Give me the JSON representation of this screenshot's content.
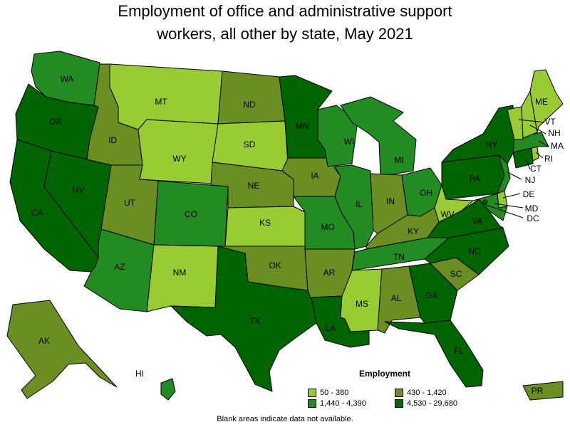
{
  "title_line1": "Employment of office and administrative support",
  "title_line2": "workers, all other by state, May 2021",
  "legend": {
    "title": "Employment",
    "items": [
      {
        "label": "50 - 380",
        "color": "#99cc33"
      },
      {
        "label": "430 - 1,420",
        "color": "#6b8e23"
      },
      {
        "label": "1,440 - 4,390",
        "color": "#228b22"
      },
      {
        "label": "4,530 - 29,680",
        "color": "#006400"
      }
    ]
  },
  "note": "Blank areas indicate data not available.",
  "states": {
    "WA": {
      "label": "WA",
      "tier": 2
    },
    "OR": {
      "label": "OR",
      "tier": 3
    },
    "CA": {
      "label": "CA",
      "tier": 3
    },
    "NV": {
      "label": "NV",
      "tier": 3
    },
    "ID": {
      "label": "ID",
      "tier": 1
    },
    "MT": {
      "label": "MT",
      "tier": 0
    },
    "WY": {
      "label": "WY",
      "tier": 0
    },
    "UT": {
      "label": "UT",
      "tier": 1
    },
    "AZ": {
      "label": "AZ",
      "tier": 2
    },
    "CO": {
      "label": "CO",
      "tier": 2
    },
    "NM": {
      "label": "NM",
      "tier": 0
    },
    "ND": {
      "label": "ND",
      "tier": 1
    },
    "SD": {
      "label": "SD",
      "tier": 0
    },
    "NE": {
      "label": "NE",
      "tier": 1
    },
    "KS": {
      "label": "KS",
      "tier": 0
    },
    "OK": {
      "label": "OK",
      "tier": 1
    },
    "TX": {
      "label": "TX",
      "tier": 3
    },
    "MN": {
      "label": "MN",
      "tier": 3
    },
    "IA": {
      "label": "IA",
      "tier": 1
    },
    "MO": {
      "label": "MO",
      "tier": 2
    },
    "AR": {
      "label": "AR",
      "tier": 1
    },
    "LA": {
      "label": "LA",
      "tier": 3
    },
    "WI": {
      "label": "WI",
      "tier": 2
    },
    "IL": {
      "label": "IL",
      "tier": 2
    },
    "MI": {
      "label": "MI",
      "tier": 2
    },
    "IN": {
      "label": "IN",
      "tier": 1
    },
    "OH": {
      "label": "OH",
      "tier": 2
    },
    "KY": {
      "label": "KY",
      "tier": 1
    },
    "TN": {
      "label": "TN",
      "tier": 2
    },
    "MS": {
      "label": "MS",
      "tier": 0
    },
    "AL": {
      "label": "AL",
      "tier": 1
    },
    "GA": {
      "label": "GA",
      "tier": 3
    },
    "FL": {
      "label": "FL",
      "tier": 3
    },
    "SC": {
      "label": "SC",
      "tier": 1
    },
    "NC": {
      "label": "NC",
      "tier": 3
    },
    "VA": {
      "label": "VA",
      "tier": 3
    },
    "WV": {
      "label": "WV",
      "tier": 0
    },
    "PA": {
      "label": "PA",
      "tier": 3
    },
    "NY": {
      "label": "NY",
      "tier": 3
    },
    "VT": {
      "label": "VT",
      "tier": 0
    },
    "NH": {
      "label": "NH",
      "tier": 0
    },
    "ME": {
      "label": "ME",
      "tier": 0
    },
    "MA": {
      "label": "MA",
      "tier": 2
    },
    "RI": {
      "label": "RI",
      "tier": 0
    },
    "CT": {
      "label": "CT",
      "tier": 3
    },
    "NJ": {
      "label": "NJ",
      "tier": 2
    },
    "DE": {
      "label": "DE",
      "tier": 0
    },
    "MD": {
      "label": "MD",
      "tier": 2
    },
    "DC": {
      "label": "DC",
      "tier": 3
    },
    "AK": {
      "label": "AK",
      "tier": 1
    },
    "HI": {
      "label": "HI",
      "tier": 2
    },
    "PR": {
      "label": "PR",
      "tier": 1
    }
  }
}
